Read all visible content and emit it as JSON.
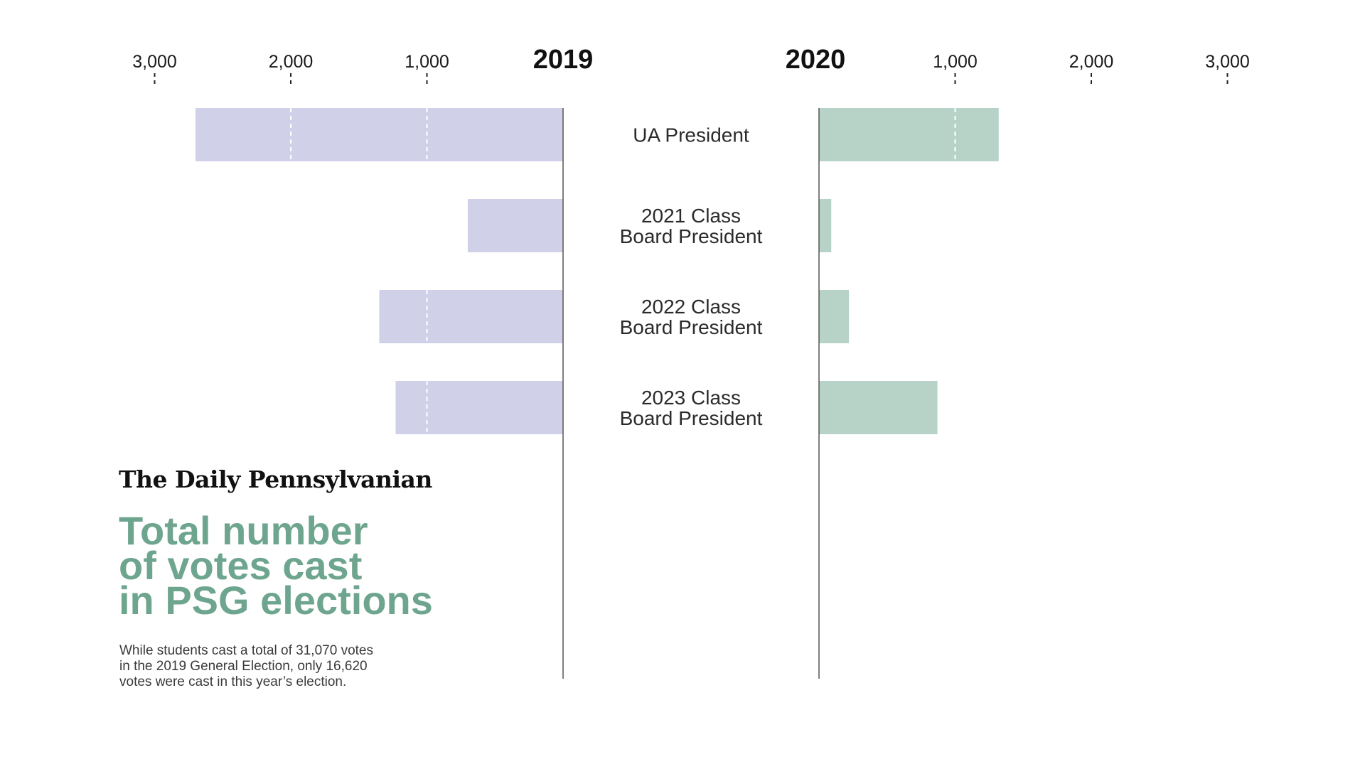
{
  "chart_data": {
    "type": "bar",
    "orientation": "horizontal",
    "layout": "mirrored",
    "categories": [
      [
        "UA President"
      ],
      [
        "2021 Class",
        "Board President"
      ],
      [
        "2022 Class",
        "Board President"
      ],
      [
        "2023 Class",
        "Board President"
      ]
    ],
    "series": [
      {
        "name": "2019",
        "values": [
          2700,
          700,
          1350,
          1230
        ],
        "color": "#d0d1e9",
        "direction": "left"
      },
      {
        "name": "2020",
        "values": [
          1320,
          90,
          220,
          870
        ],
        "color": "#b7d3c8",
        "direction": "right"
      }
    ],
    "x_ticks": [
      1000,
      2000,
      3000
    ],
    "x_tick_labels": [
      "1,000",
      "2,000",
      "3,000"
    ],
    "gridline_color": "#ffffff",
    "axis_color": "#555555"
  },
  "branding": {
    "masthead": "The Daily Pennsylvanian"
  },
  "title_lines": [
    "Total number",
    "of votes cast",
    "in PSG elections"
  ],
  "description_lines": [
    "While students cast a total of 31,070 votes",
    "in the 2019 General Election, only 16,620",
    "votes were cast in this year’s election."
  ],
  "colors": {
    "title": "#6ea58f"
  }
}
